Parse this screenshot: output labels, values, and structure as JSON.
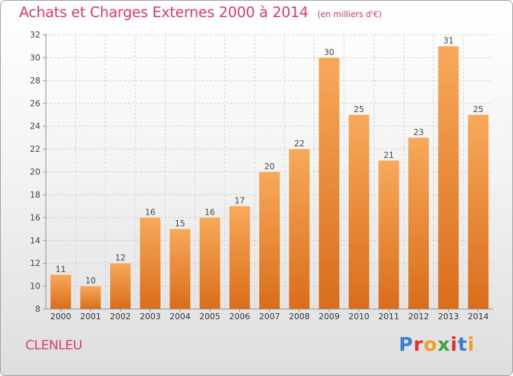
{
  "header": {
    "title": "Achats et Charges Externes 2000 à 2014",
    "subtitle": "(en milliers d'€)"
  },
  "footer": {
    "place": "CLENLEU",
    "logo_text": "Proxiti",
    "logo_colors": [
      "#3a7fd0",
      "#e6312b",
      "#f0a020",
      "#3aa83a",
      "#e6312b",
      "#3a7fd0",
      "#f0a020"
    ]
  },
  "chart_data": {
    "type": "bar",
    "categories": [
      "2000",
      "2001",
      "2002",
      "2003",
      "2004",
      "2005",
      "2006",
      "2007",
      "2008",
      "2009",
      "2010",
      "2011",
      "2012",
      "2013",
      "2014"
    ],
    "values": [
      11,
      10,
      12,
      16,
      15,
      16,
      17,
      20,
      22,
      30,
      25,
      21,
      23,
      31,
      25
    ],
    "ylim": [
      8,
      32
    ],
    "yticks": [
      8,
      10,
      12,
      14,
      16,
      18,
      20,
      22,
      24,
      26,
      28,
      30,
      32
    ],
    "grid": true,
    "bar_color_top": "#f7a95a",
    "bar_color_bottom": "#d96d1a"
  }
}
